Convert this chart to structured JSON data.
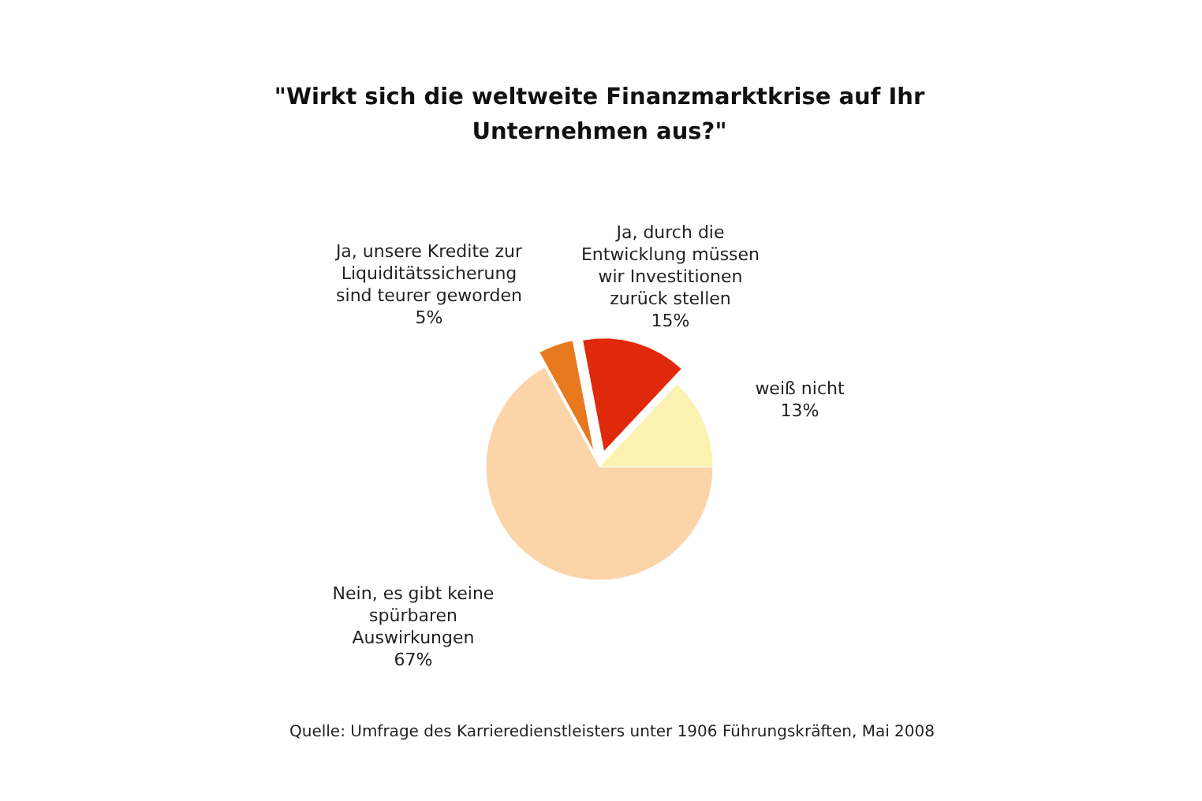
{
  "chart_data": {
    "type": "pie",
    "title": "\"Wirkt sich die weltweite Finanzmarktkrise auf Ihr Unternehmen aus?\"",
    "categories": [
      "Nein, es gibt keine spürbaren Auswirkungen",
      "Ja, unsere Kredite zur Liquiditätssicherung sind teurer geworden",
      "Ja, durch die Entwicklung müssen wir Investitionen zurück stellen",
      "weiß nicht"
    ],
    "values": [
      67,
      5,
      15,
      13
    ],
    "colors": [
      "#fbd4a8",
      "#e8791f",
      "#e0290b",
      "#faf2b0"
    ],
    "value_labels": [
      "67%",
      "5%",
      "15%",
      "13%"
    ],
    "annotations": [
      "Quelle: Umfrage des Karrieredienstleisters unter 1906 Führungskräften, Mai 2008"
    ]
  }
}
